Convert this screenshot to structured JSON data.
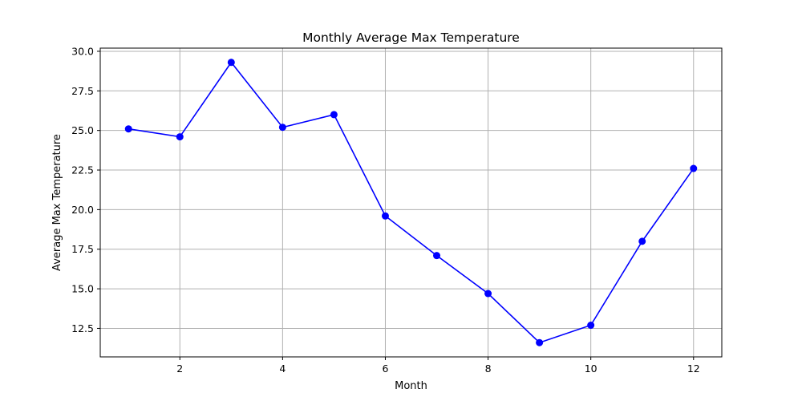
{
  "chart_data": {
    "type": "line",
    "title": "Monthly Average Max Temperature",
    "xlabel": "Month",
    "ylabel": "Average Max Temperature",
    "x": [
      1,
      2,
      3,
      4,
      5,
      6,
      7,
      8,
      9,
      10,
      11,
      12
    ],
    "series": [
      {
        "values": [
          25.1,
          24.6,
          29.3,
          25.2,
          26.0,
          19.6,
          17.1,
          14.7,
          11.6,
          12.7,
          18.0,
          22.6
        ],
        "color": "#0000ff",
        "marker": "circle"
      }
    ],
    "xlim": [
      0.45,
      12.55
    ],
    "ylim": [
      10.7,
      30.2
    ],
    "xticks": [
      2,
      4,
      6,
      8,
      10,
      12
    ],
    "xtick_labels": [
      "2",
      "4",
      "6",
      "8",
      "10",
      "12"
    ],
    "yticks": [
      12.5,
      15.0,
      17.5,
      20.0,
      22.5,
      25.0,
      27.5,
      30.0
    ],
    "ytick_labels": [
      "12.5",
      "15.0",
      "17.5",
      "20.0",
      "22.5",
      "25.0",
      "27.5",
      "30.0"
    ],
    "grid": true
  }
}
